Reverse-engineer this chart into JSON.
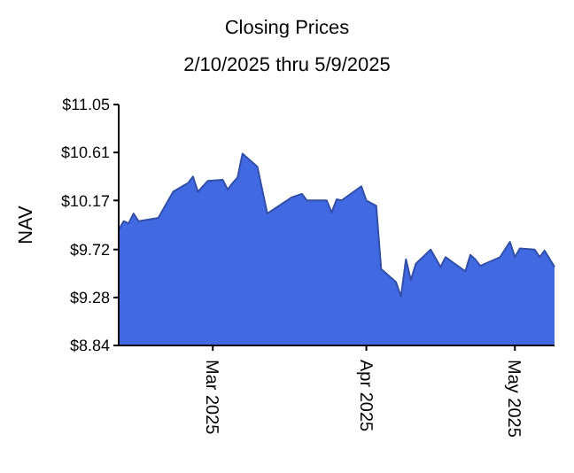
{
  "chart_data": {
    "type": "area",
    "title": "Closing Prices",
    "subtitle": "2/10/2025 thru 5/9/2025",
    "ylabel": "NAV",
    "x": [
      "2025-02-10",
      "2025-02-11",
      "2025-02-12",
      "2025-02-13",
      "2025-02-14",
      "2025-02-18",
      "2025-02-21",
      "2025-02-24",
      "2025-02-25",
      "2025-02-26",
      "2025-02-28",
      "2025-03-03",
      "2025-03-04",
      "2025-03-05",
      "2025-03-06",
      "2025-03-07",
      "2025-03-10",
      "2025-03-12",
      "2025-03-17",
      "2025-03-19",
      "2025-03-20",
      "2025-03-24",
      "2025-03-25",
      "2025-03-26",
      "2025-03-27",
      "2025-03-31",
      "2025-04-01",
      "2025-04-03",
      "2025-04-04",
      "2025-04-07",
      "2025-04-08",
      "2025-04-09",
      "2025-04-10",
      "2025-04-11",
      "2025-04-14",
      "2025-04-16",
      "2025-04-17",
      "2025-04-21",
      "2025-04-22",
      "2025-04-23",
      "2025-04-24",
      "2025-04-28",
      "2025-04-30",
      "2025-05-01",
      "2025-05-02",
      "2025-05-05",
      "2025-05-06",
      "2025-05-07",
      "2025-05-09"
    ],
    "series": [
      {
        "color": "#4169e1",
        "values": [
          9.9,
          9.98,
          9.96,
          10.05,
          9.98,
          10.01,
          10.25,
          10.33,
          10.39,
          10.25,
          10.35,
          10.36,
          10.27,
          10.33,
          10.38,
          10.6,
          10.48,
          10.05,
          10.2,
          10.23,
          10.17,
          10.17,
          10.06,
          10.18,
          10.17,
          10.3,
          10.17,
          10.12,
          9.54,
          9.42,
          9.29,
          9.63,
          9.44,
          9.59,
          9.72,
          9.56,
          9.65,
          9.52,
          9.67,
          9.63,
          9.57,
          9.65,
          9.79,
          9.65,
          9.73,
          9.72,
          9.65,
          9.71,
          9.56
        ]
      }
    ],
    "xlim": [
      "2025-02-10",
      "2025-05-09"
    ],
    "xticks": [
      {
        "value": "2025-03-01",
        "label": "Mar 2025"
      },
      {
        "value": "2025-04-01",
        "label": "Apr 2025"
      },
      {
        "value": "2025-05-01",
        "label": "May 2025"
      }
    ],
    "ylim": [
      8.84,
      11.05
    ],
    "yticks": [
      {
        "value": 8.84,
        "label": "$8.84"
      },
      {
        "value": 9.28,
        "label": "$9.28"
      },
      {
        "value": 9.72,
        "label": "$9.72"
      },
      {
        "value": 10.17,
        "label": "$10.17"
      },
      {
        "value": 10.61,
        "label": "$10.61"
      },
      {
        "value": 11.05,
        "label": "$11.05"
      }
    ],
    "grid": false
  }
}
